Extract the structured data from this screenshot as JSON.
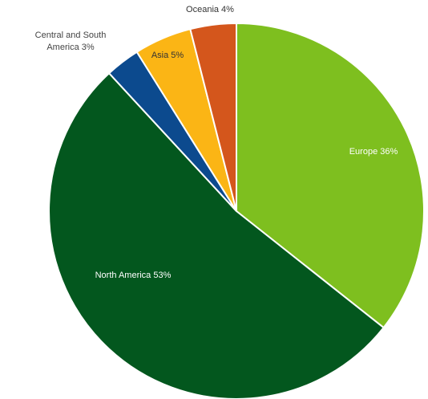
{
  "chart_data": {
    "type": "pie",
    "title": "",
    "start_angle_deg": 0,
    "direction": "clockwise",
    "slices": [
      {
        "label": "Europe",
        "value": 36,
        "display": "Europe 36%",
        "color": "#7ebf1f",
        "label_color": "#ffffff"
      },
      {
        "label": "North America",
        "value": 53,
        "display": "North America 53%",
        "color": "#03571e",
        "label_color": "#ffffff"
      },
      {
        "label": "Central and South America",
        "value": 3,
        "display": "Central and South America 3%",
        "color": "#0c4a8e",
        "label_color": "#444444"
      },
      {
        "label": "Asia",
        "value": 5,
        "display": "Asia 5%",
        "color": "#fbb515",
        "label_color": "#333333"
      },
      {
        "label": "Oceania",
        "value": 4,
        "display": "Oceania 4%",
        "color": "#d4561c",
        "label_color": "#333333"
      }
    ]
  }
}
